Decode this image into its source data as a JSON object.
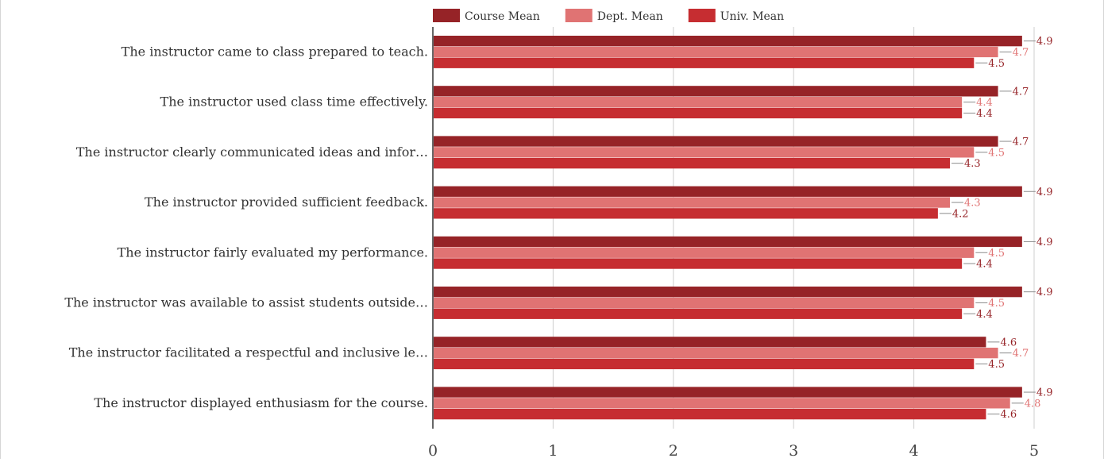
{
  "chart_data": {
    "type": "bar",
    "orientation": "horizontal",
    "title": "",
    "xlabel": "",
    "ylabel": "",
    "xlim": [
      0,
      5
    ],
    "x_ticks": [
      "0",
      "1",
      "2",
      "3",
      "4",
      "5"
    ],
    "grid": true,
    "legend_position": "top",
    "categories": [
      "The instructor came to class prepared to teach.",
      "The instructor used class time effectively.",
      "The instructor clearly communicated ideas and infor…",
      "The instructor provided sufficient feedback.",
      "The instructor fairly evaluated my performance.",
      "The instructor was available to assist students outside…",
      "The instructor facilitated a respectful and inclusive le…",
      "The instructor displayed enthusiasm for the course."
    ],
    "series": [
      {
        "name": "Course Mean",
        "color": "#962327",
        "values": [
          4.9,
          4.7,
          4.7,
          4.9,
          4.9,
          4.9,
          4.6,
          4.9
        ]
      },
      {
        "name": "Dept. Mean",
        "color": "#e07373",
        "values": [
          4.7,
          4.4,
          4.5,
          4.3,
          4.5,
          4.5,
          4.7,
          4.8
        ]
      },
      {
        "name": "Univ. Mean",
        "color": "#c62d31",
        "values": [
          4.5,
          4.4,
          4.3,
          4.2,
          4.4,
          4.4,
          4.5,
          4.6
        ]
      }
    ]
  }
}
